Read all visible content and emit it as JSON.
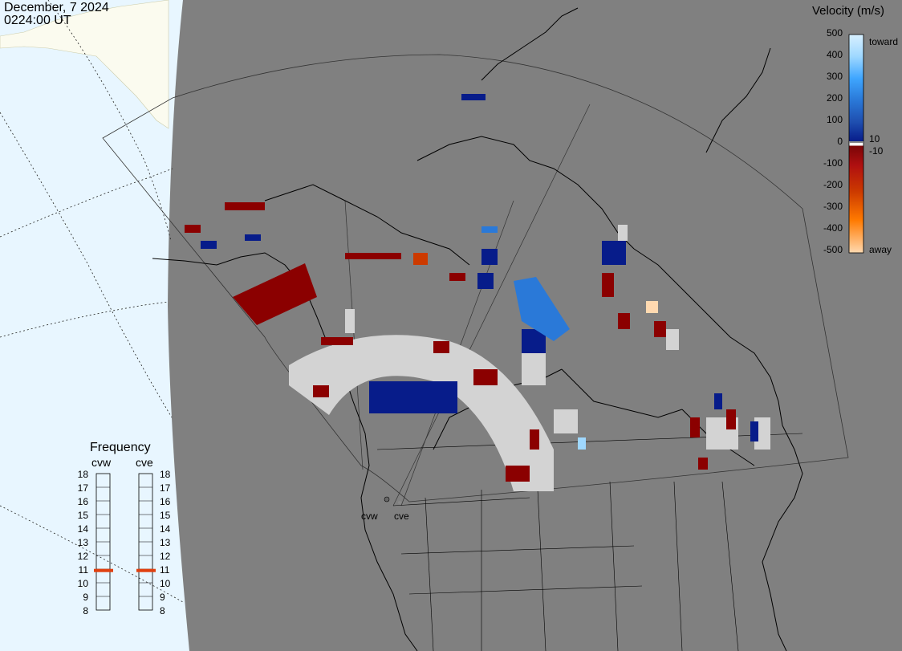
{
  "header": {
    "date": "December, 7 2024",
    "time": "0224:00 UT"
  },
  "colorbar": {
    "title": "Velocity (m/s)",
    "ticks": [
      "500",
      "400",
      "300",
      "200",
      "100",
      "0",
      "-100",
      "-200",
      "-300",
      "-400",
      "-500"
    ],
    "toward_label": "toward",
    "away_label": "away",
    "plus_threshold": "10",
    "minus_threshold": "-10",
    "stops": [
      "#d8f0ff",
      "#9fd8ff",
      "#3fa6ff",
      "#2a79d8",
      "#1f4fb0",
      "#071c8a",
      "#7a0508",
      "#b01010",
      "#cc3a00",
      "#ff7a00",
      "#ffd9b0"
    ]
  },
  "frequency": {
    "title": "Frequency",
    "radars": [
      {
        "name": "cvw",
        "current_mhz": 10.9
      },
      {
        "name": "cve",
        "current_mhz": 10.9
      }
    ],
    "ticks": [
      "18",
      "17",
      "16",
      "15",
      "14",
      "13",
      "12",
      "11",
      "10",
      "9",
      "8"
    ]
  },
  "sites": {
    "cvw": "cvw",
    "cve": "cve"
  },
  "colors": {
    "ocean": "#e8f6ff",
    "land_day": "#fbfbef",
    "night": "#808080",
    "ground_scatter": "#d3d3d3",
    "coastline": "#000000",
    "frequency_marker": "#e04010"
  }
}
